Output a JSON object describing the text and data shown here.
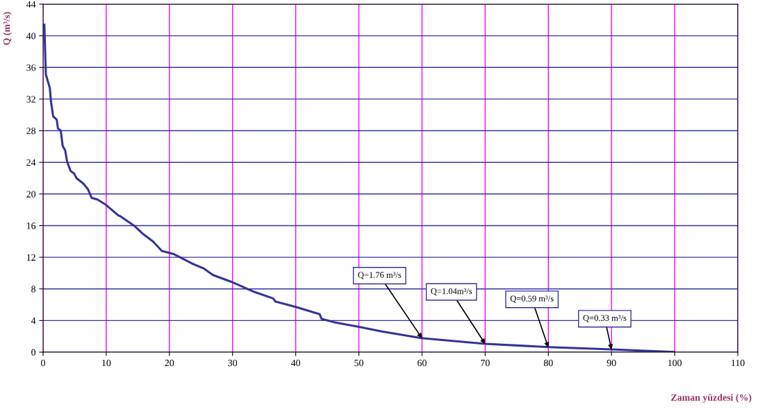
{
  "chart_data": {
    "type": "line",
    "xlabel": "Zaman yüzdesi (%)",
    "ylabel": "Q (m³/s)",
    "xlim": [
      0,
      110
    ],
    "xticks": [
      0,
      10,
      20,
      30,
      40,
      50,
      60,
      70,
      80,
      90,
      100,
      110
    ],
    "ylim": [
      0,
      44
    ],
    "yticks": [
      0,
      4,
      8,
      12,
      16,
      20,
      24,
      28,
      32,
      36,
      40,
      44
    ],
    "grid": true,
    "legend": false,
    "marker": "none",
    "line_style": "solid",
    "series": [
      {
        "color": "#333399",
        "x": [
          0.2,
          0.44,
          1.07,
          1.25,
          1.6,
          2.17,
          2.35,
          2.8,
          3.1,
          3.5,
          3.8,
          4.37,
          4.9,
          5.3,
          6.4,
          7.1,
          7.7,
          8.6,
          10,
          11.9,
          12.2,
          14.4,
          15.9,
          17.4,
          18.8,
          20.7,
          23.6,
          25.4,
          26.9,
          29.8,
          33.5,
          36.4,
          36.8,
          40.1,
          43.8,
          44.1,
          46,
          50,
          53.7,
          59.9,
          70,
          80.1,
          90,
          99.9
        ],
        "values": [
          41.4,
          35.1,
          33.4,
          31.7,
          29.8,
          29.4,
          28.3,
          28,
          26.1,
          25.5,
          24.1,
          22.9,
          22.6,
          22,
          21.3,
          20.6,
          19.5,
          19.3,
          18.6,
          17.3,
          17.2,
          16,
          14.9,
          14,
          12.8,
          12.4,
          11.2,
          10.6,
          9.75,
          8.9,
          7.6,
          6.8,
          6.4,
          5.7,
          4.8,
          4.2,
          3.8,
          3.2,
          2.6,
          1.78,
          1.05,
          0.64,
          0.35,
          0.03
        ]
      }
    ],
    "annotations": [
      {
        "text": "Q=1.76 m³/s",
        "x": 60,
        "y": 1.76
      },
      {
        "text": "Q=1.04m³/s",
        "x": 70,
        "y": 1.04
      },
      {
        "text": "Q=0.59 m³/s",
        "x": 80,
        "y": 0.59
      },
      {
        "text": "Q=0.33 m³/s",
        "x": 90,
        "y": 0.33
      }
    ]
  }
}
